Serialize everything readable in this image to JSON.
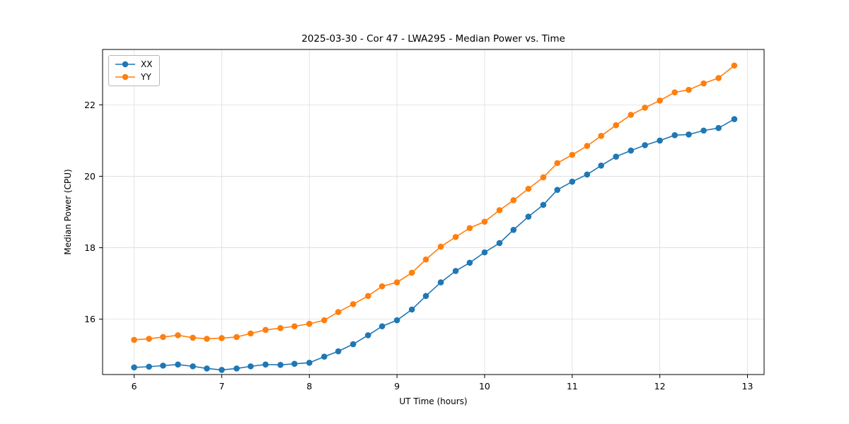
{
  "figure": {
    "title": "2025-03-30 - Cor 47 - LWA295 - Median Power vs. Time",
    "xlabel": "UT Time (hours)",
    "ylabel": "Median Power (CPU)"
  },
  "chart_data": {
    "type": "line",
    "title": "2025-03-30 - Cor 47 - LWA295 - Median Power vs. Time",
    "xlabel": "UT Time (hours)",
    "ylabel": "Median Power (CPU)",
    "xlim": [
      5.64,
      13.19
    ],
    "ylim": [
      14.45,
      23.55
    ],
    "xticks": [
      6,
      7,
      8,
      9,
      10,
      11,
      12,
      13
    ],
    "yticks": [
      16,
      18,
      20,
      22
    ],
    "grid": true,
    "grid_color": "#dddddd",
    "legend_position": "upper left",
    "marker": "circle",
    "x": [
      6.0,
      6.17,
      6.33,
      6.5,
      6.67,
      6.83,
      7.0,
      7.17,
      7.33,
      7.5,
      7.67,
      7.83,
      8.0,
      8.17,
      8.33,
      8.5,
      8.67,
      8.83,
      9.0,
      9.17,
      9.33,
      9.5,
      9.67,
      9.83,
      10.0,
      10.17,
      10.33,
      10.5,
      10.67,
      10.83,
      11.0,
      11.17,
      11.33,
      11.5,
      11.67,
      11.83,
      12.0,
      12.17,
      12.33,
      12.5,
      12.67,
      12.85
    ],
    "series": [
      {
        "name": "XX",
        "color": "#1f77b4",
        "values": [
          14.65,
          14.67,
          14.7,
          14.73,
          14.68,
          14.62,
          14.58,
          14.62,
          14.68,
          14.73,
          14.72,
          14.75,
          14.78,
          14.95,
          15.1,
          15.3,
          15.55,
          15.8,
          15.97,
          16.27,
          16.65,
          17.03,
          17.35,
          17.58,
          17.87,
          18.13,
          18.5,
          18.87,
          19.2,
          19.62,
          19.85,
          20.05,
          20.3,
          20.55,
          20.72,
          20.87,
          21.0,
          21.15,
          21.17,
          21.28,
          21.35,
          21.6
        ]
      },
      {
        "name": "YY",
        "color": "#ff7f0e",
        "values": [
          15.42,
          15.45,
          15.5,
          15.55,
          15.48,
          15.45,
          15.47,
          15.5,
          15.6,
          15.7,
          15.75,
          15.8,
          15.87,
          15.97,
          16.2,
          16.42,
          16.65,
          16.92,
          17.03,
          17.3,
          17.67,
          18.03,
          18.3,
          18.55,
          18.73,
          19.05,
          19.33,
          19.65,
          19.97,
          20.37,
          20.6,
          20.85,
          21.13,
          21.43,
          21.72,
          21.92,
          22.12,
          22.35,
          22.42,
          22.6,
          22.75,
          23.1
        ]
      }
    ]
  }
}
